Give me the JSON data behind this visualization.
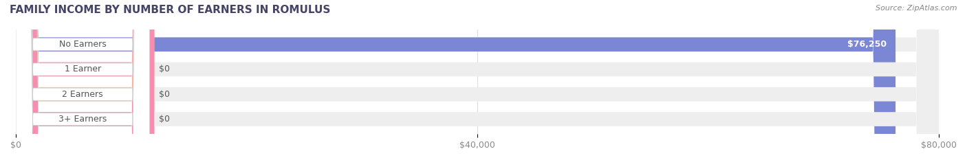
{
  "title": "FAMILY INCOME BY NUMBER OF EARNERS IN ROMULUS",
  "source": "Source: ZipAtlas.com",
  "categories": [
    "No Earners",
    "1 Earner",
    "2 Earners",
    "3+ Earners"
  ],
  "values": [
    76250,
    0,
    0,
    0
  ],
  "bar_colors": [
    "#7b86d4",
    "#f48fb1",
    "#f0c98a",
    "#f48fb1"
  ],
  "bar_bg_color": "#eeeeee",
  "label_bg_color": "#ffffff",
  "xlim": [
    0,
    80000
  ],
  "xticks": [
    0,
    40000,
    80000
  ],
  "xtick_labels": [
    "$0",
    "$40,000",
    "$80,000"
  ],
  "value_label_color": "#ffffff",
  "category_label_color": "#555555",
  "title_color": "#444466",
  "source_color": "#888888",
  "bar_height": 0.55,
  "figure_bg": "#ffffff",
  "axes_bg": "#ffffff"
}
